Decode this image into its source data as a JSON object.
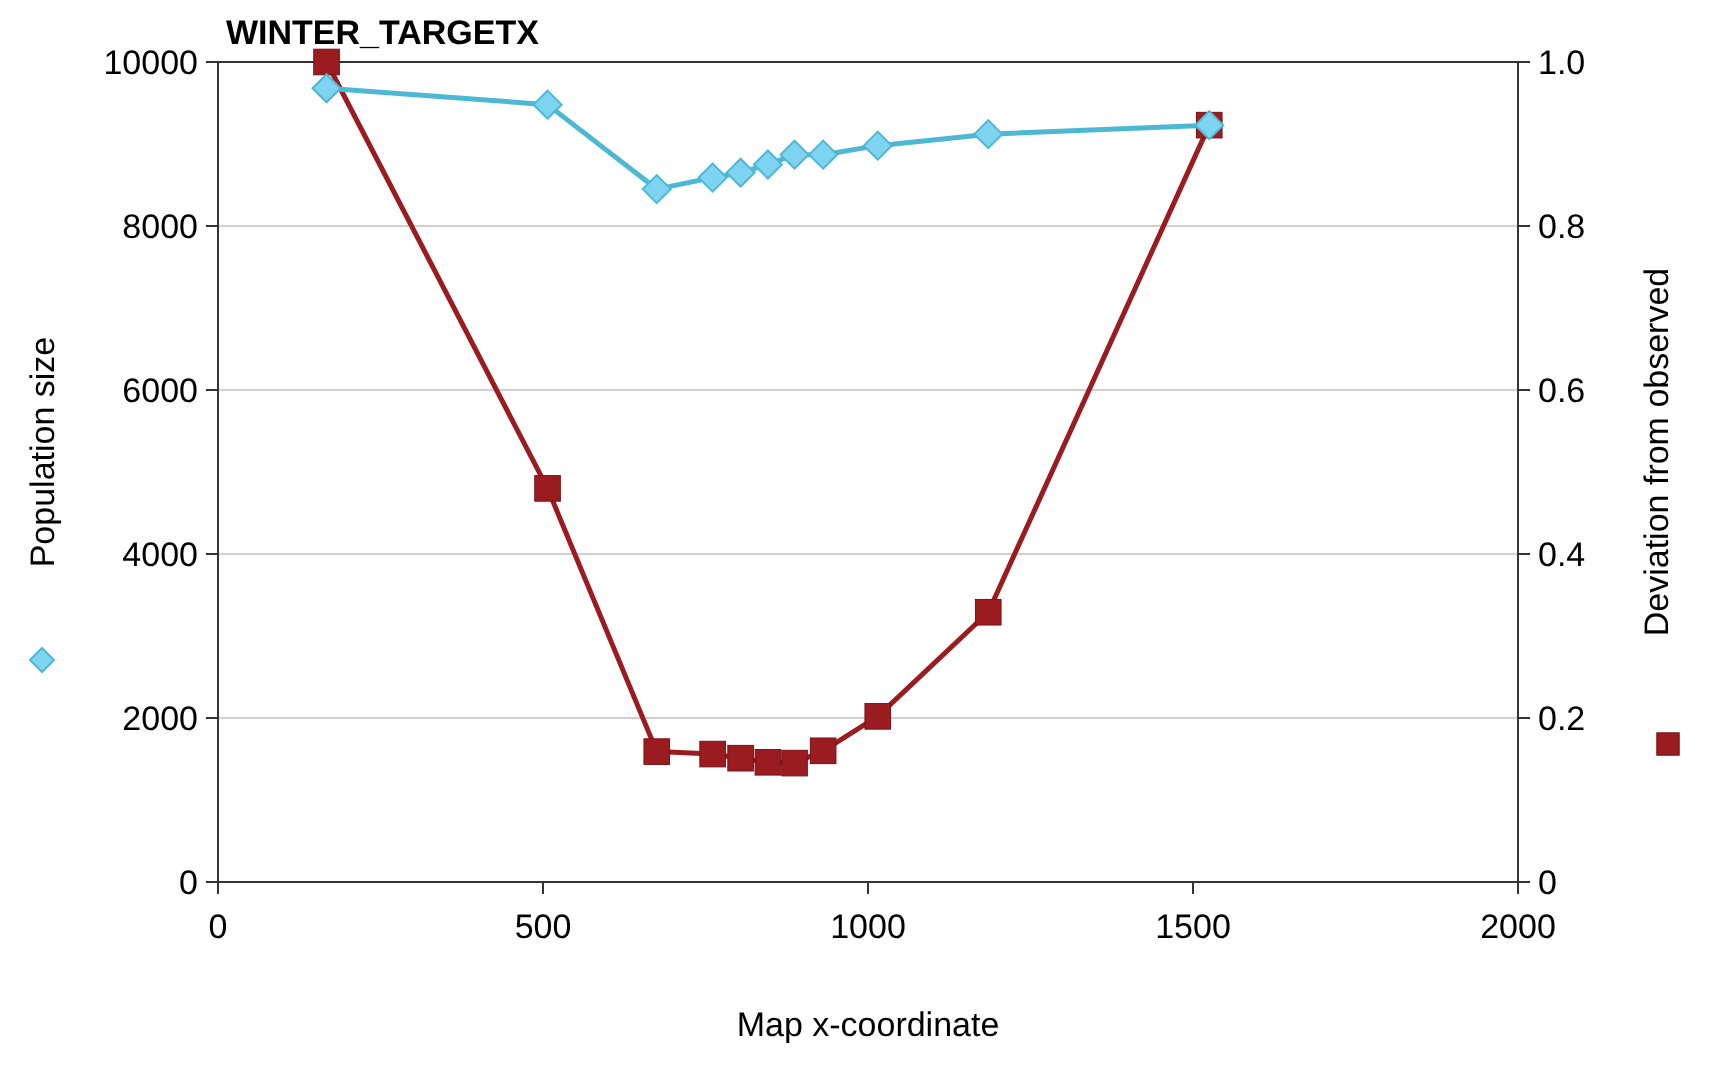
{
  "chart_data": {
    "type": "line",
    "title": "WINTER_TARGETX",
    "xlabel": "Map x-coordinate",
    "ylabel": "Population size",
    "y2label": "Deviation from observed",
    "xlim": [
      0,
      2000
    ],
    "xticks": [
      0,
      500,
      1000,
      1500,
      2000
    ],
    "ylim": [
      0,
      10000
    ],
    "yticks": [
      0,
      2000,
      4000,
      6000,
      8000,
      10000
    ],
    "y2lim": [
      0,
      1
    ],
    "y2ticks": [
      {
        "value": 0,
        "label": "0"
      },
      {
        "value": 0.2,
        "label": "0.2"
      },
      {
        "value": 0.4,
        "label": "0.4"
      },
      {
        "value": 0.6,
        "label": "0.6"
      },
      {
        "value": 0.8,
        "label": "0.8"
      },
      {
        "value": 1,
        "label": "1.0"
      }
    ],
    "grid": "y",
    "series": [
      {
        "color": "#4db8d4",
        "marker": "diamond",
        "x": [
          167,
          507,
          675,
          761,
          804,
          846,
          887,
          931,
          1015,
          1185,
          1525
        ],
        "values": [
          9680,
          9480,
          8450,
          8590,
          8650,
          8750,
          8870,
          8870,
          8980,
          9120,
          9230
        ]
      },
      {
        "color": "#9b1c20",
        "marker": "square",
        "axis": "y2",
        "x": [
          167,
          507,
          675,
          761,
          804,
          846,
          887,
          931,
          1015,
          1185,
          1525
        ],
        "values": [
          1.0,
          0.48,
          0.159,
          0.156,
          0.151,
          0.146,
          0.145,
          0.16,
          0.202,
          0.329,
          0.923
        ]
      }
    ]
  }
}
